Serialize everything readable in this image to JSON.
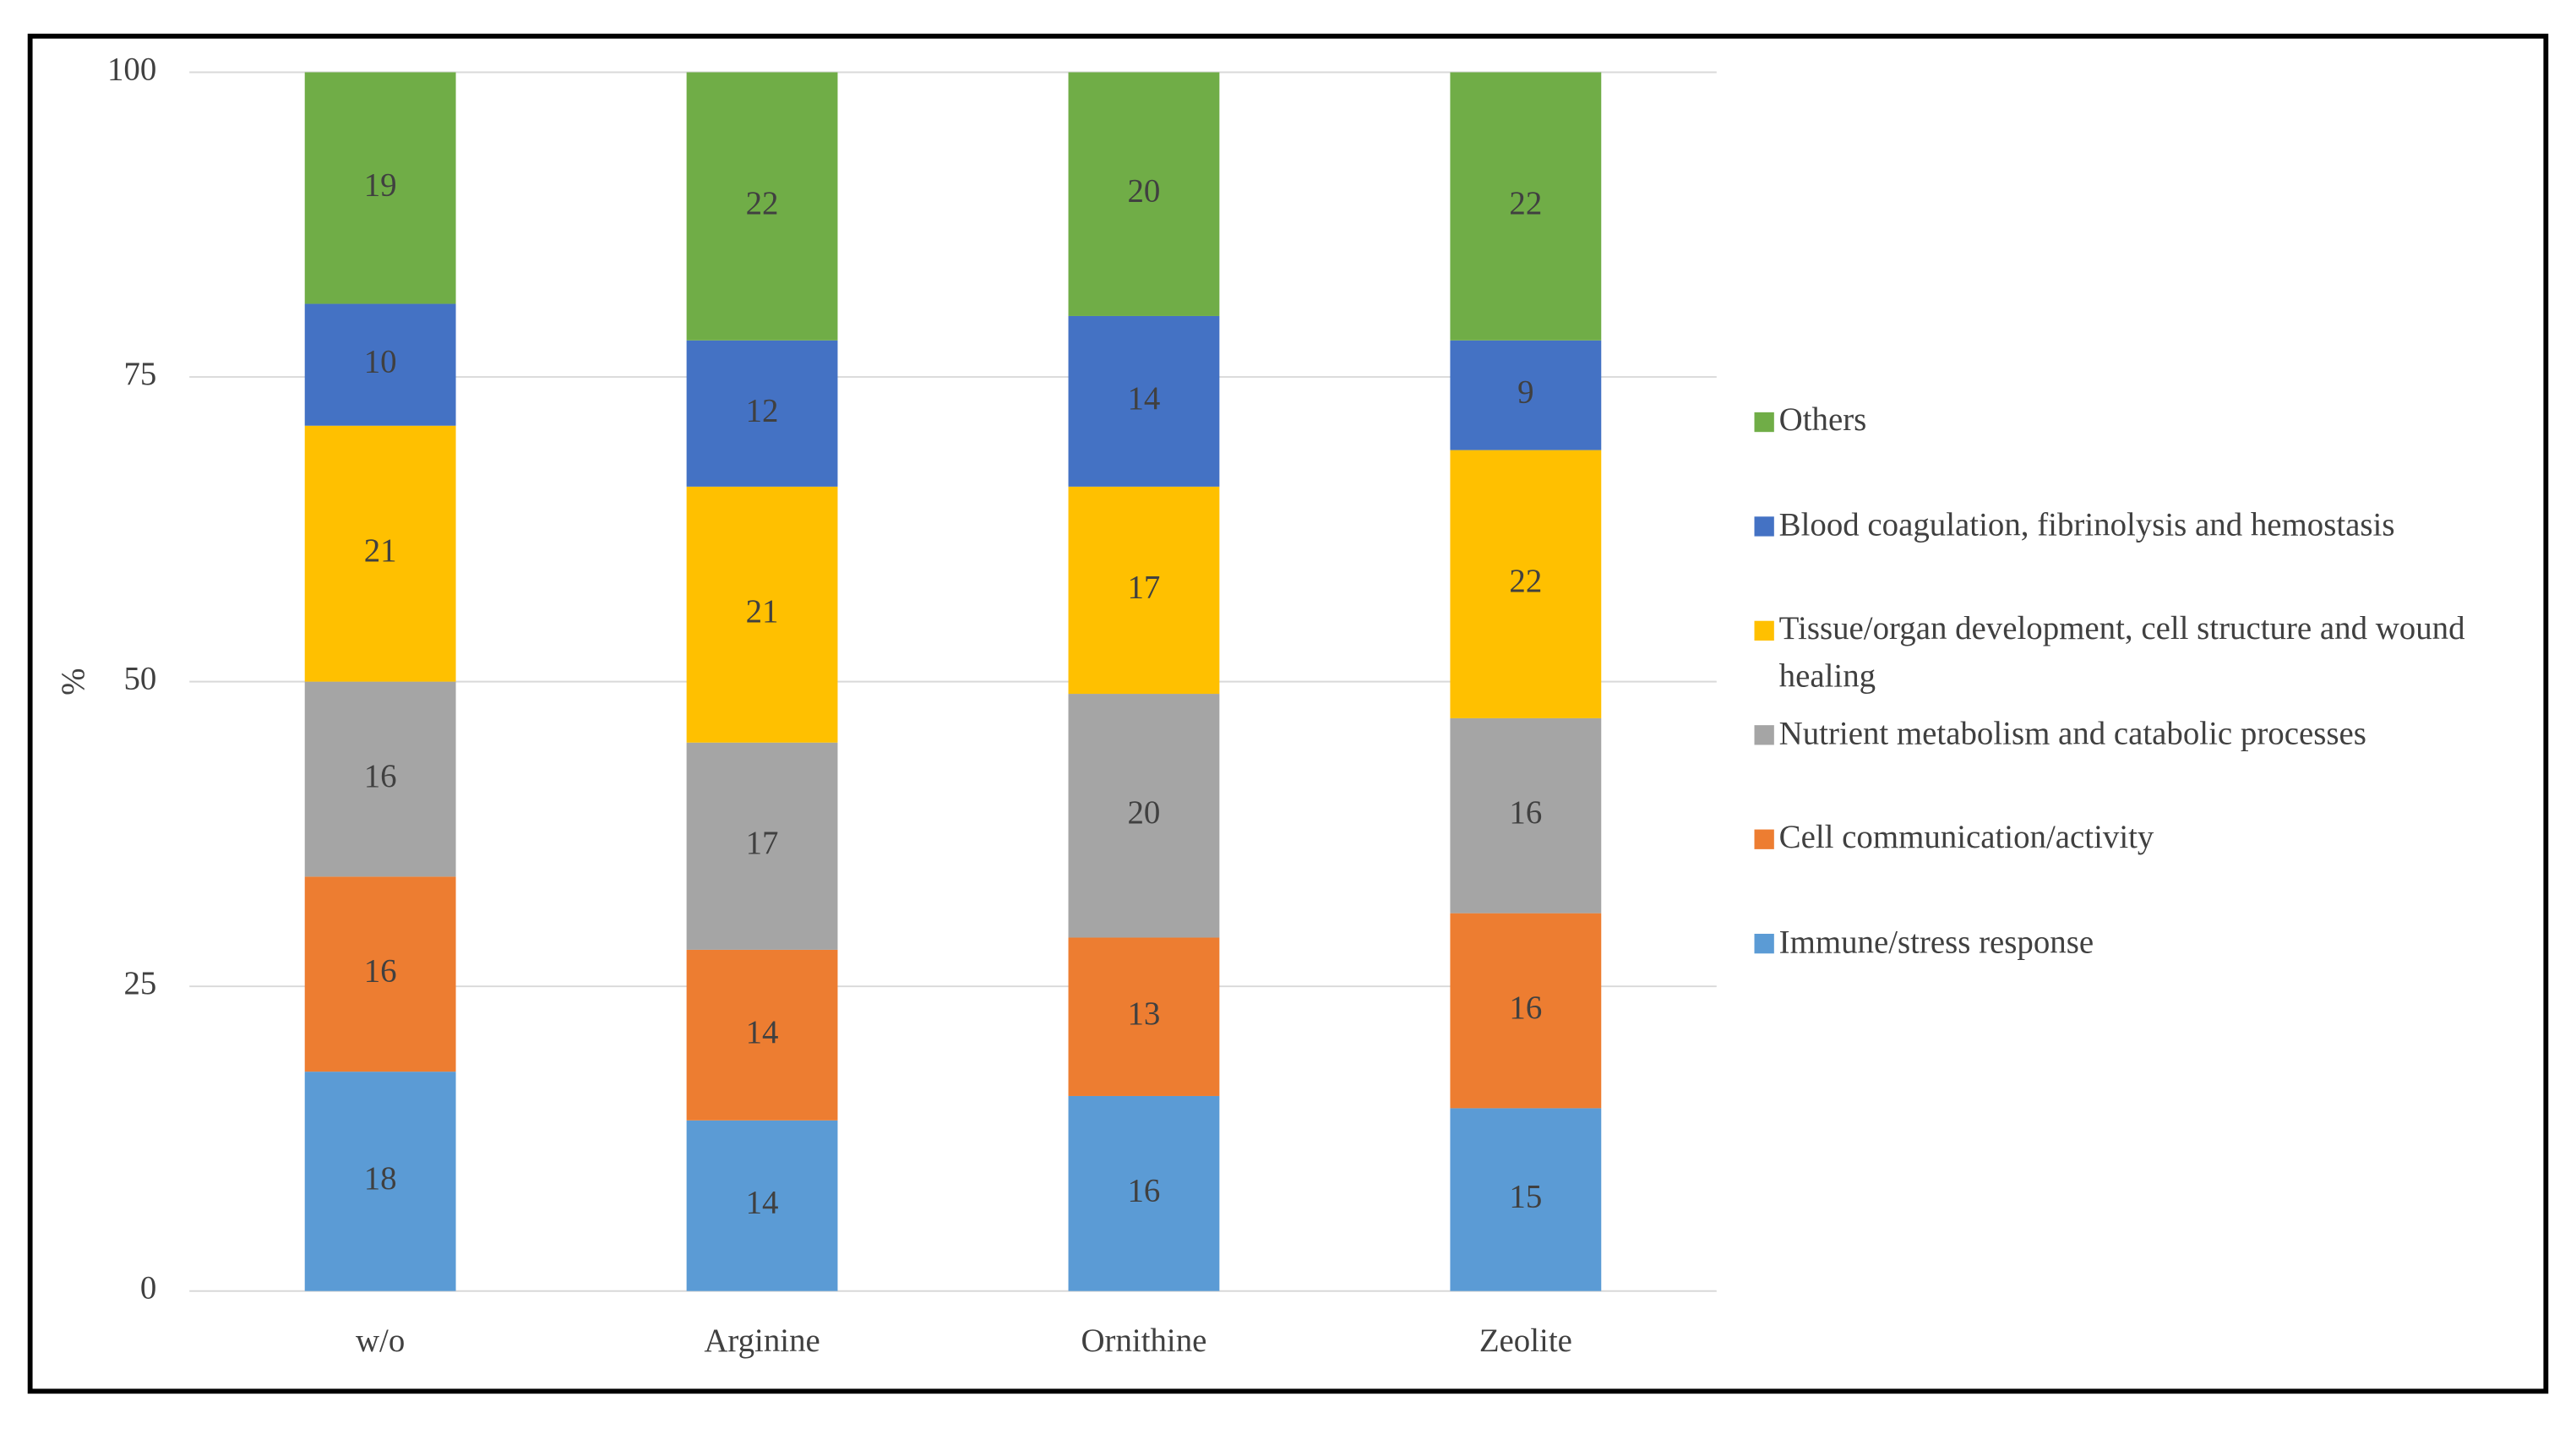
{
  "chart_data": {
    "type": "stacked_bar",
    "y_label": "%",
    "categories": [
      "w/o",
      "Arginine",
      "Ornithine",
      "Zeolite"
    ],
    "series": [
      {
        "name": "Immune/stress response",
        "color": "#5b9bd5",
        "values": [
          18,
          14,
          16,
          15
        ]
      },
      {
        "name": "Cell communication/activity",
        "color": "#ed7d31",
        "values": [
          16,
          14,
          13,
          16
        ]
      },
      {
        "name": "Nutrient metabolism and catabolic processes",
        "color": "#a5a5a5",
        "values": [
          16,
          17,
          20,
          16
        ]
      },
      {
        "name": "Tissue/organ development, cell structure and wound healing",
        "color": "#ffc000",
        "values": [
          21,
          21,
          17,
          22
        ]
      },
      {
        "name": "Blood coagulation, fibrinolysis and hemostasis",
        "color": "#4472c4",
        "values": [
          10,
          12,
          14,
          9
        ]
      },
      {
        "name": "Others",
        "color": "#70ad47",
        "values": [
          19,
          22,
          20,
          22
        ]
      }
    ],
    "ylim": [
      0,
      100
    ],
    "yticks": [
      0,
      25,
      50,
      75,
      100
    ],
    "grid": true,
    "legend": "right"
  }
}
